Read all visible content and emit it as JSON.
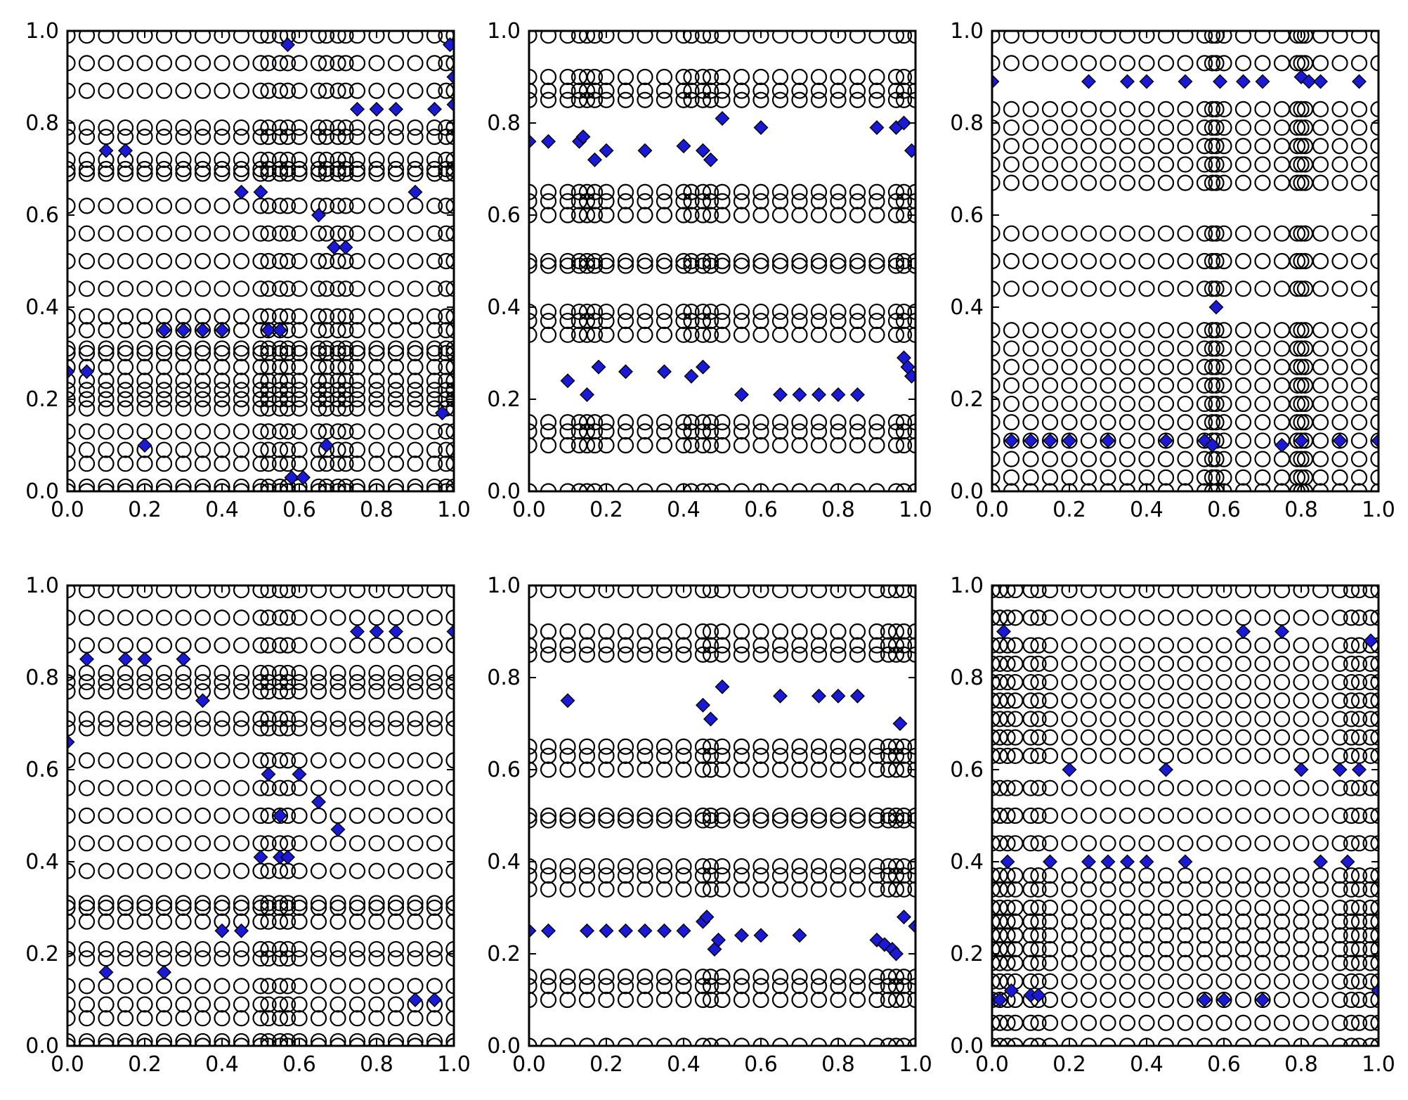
{
  "chart_data": [
    {
      "type": "scatter",
      "panel": "top-left",
      "xlim": [
        0,
        1
      ],
      "ylim": [
        0,
        1
      ],
      "x_ticks": [
        "0.0",
        "0.2",
        "0.4",
        "0.6",
        "0.8",
        "1.0"
      ],
      "y_ticks": [
        "0.0",
        "0.2",
        "0.4",
        "0.6",
        "0.8",
        "1.0"
      ],
      "circle_columns": [
        0,
        0.05,
        0.1,
        0.15,
        0.2,
        0.25,
        0.3,
        0.35,
        0.4,
        0.45,
        0.5,
        0.52,
        0.55,
        0.57,
        0.6,
        0.65,
        0.67,
        0.7,
        0.72,
        0.75,
        0.8,
        0.85,
        0.9,
        0.95,
        0.98,
        1.0
      ],
      "circle_rows": [
        0,
        0.01,
        0.06,
        0.09,
        0.13,
        0.18,
        0.2,
        0.22,
        0.24,
        0.27,
        0.3,
        0.31,
        0.35,
        0.38,
        0.44,
        0.5,
        0.56,
        0.62,
        0.69,
        0.7,
        0.72,
        0.77,
        0.79,
        0.87,
        0.93,
        0.99
      ],
      "series": [
        {
          "name": "circles",
          "marker": "o",
          "color": "none"
        },
        {
          "name": "diamonds",
          "marker": "D",
          "color": "#1a1ad6",
          "points": [
            [
              0.0,
              0.26
            ],
            [
              0.05,
              0.26
            ],
            [
              0.1,
              0.74
            ],
            [
              0.15,
              0.74
            ],
            [
              0.2,
              0.1
            ],
            [
              0.25,
              0.35
            ],
            [
              0.3,
              0.35
            ],
            [
              0.35,
              0.35
            ],
            [
              0.4,
              0.35
            ],
            [
              0.45,
              0.65
            ],
            [
              0.5,
              0.65
            ],
            [
              0.52,
              0.35
            ],
            [
              0.55,
              0.35
            ],
            [
              0.57,
              0.97
            ],
            [
              0.58,
              0.03
            ],
            [
              0.61,
              0.03
            ],
            [
              0.65,
              0.6
            ],
            [
              0.67,
              0.1
            ],
            [
              0.69,
              0.53
            ],
            [
              0.72,
              0.53
            ],
            [
              0.75,
              0.83
            ],
            [
              0.8,
              0.83
            ],
            [
              0.85,
              0.83
            ],
            [
              0.9,
              0.65
            ],
            [
              0.95,
              0.83
            ],
            [
              0.97,
              0.17
            ],
            [
              0.99,
              0.97
            ],
            [
              1.0,
              0.9
            ],
            [
              1.0,
              0.84
            ]
          ]
        }
      ]
    },
    {
      "type": "scatter",
      "panel": "top-middle",
      "xlim": [
        0,
        1
      ],
      "ylim": [
        0,
        1
      ],
      "x_ticks": [
        "0.0",
        "0.2",
        "0.4",
        "0.6",
        "0.8",
        "1.0"
      ],
      "y_ticks": [
        "0.0",
        "0.2",
        "0.4",
        "0.6",
        "0.8",
        "1.0"
      ],
      "circle_columns": [
        0,
        0.05,
        0.1,
        0.13,
        0.15,
        0.17,
        0.2,
        0.25,
        0.3,
        0.35,
        0.4,
        0.42,
        0.45,
        0.47,
        0.5,
        0.55,
        0.6,
        0.65,
        0.7,
        0.75,
        0.8,
        0.85,
        0.9,
        0.95,
        0.97,
        1.0
      ],
      "circle_rows": [
        0,
        0.1,
        0.13,
        0.15,
        0.34,
        0.37,
        0.39,
        0.49,
        0.5,
        0.6,
        0.63,
        0.65,
        0.85,
        0.87,
        0.9,
        0.99
      ],
      "series": [
        {
          "name": "circles",
          "marker": "o",
          "color": "none"
        },
        {
          "name": "diamonds",
          "marker": "D",
          "color": "#1a1ad6",
          "points": [
            [
              0.0,
              0.76
            ],
            [
              0.05,
              0.76
            ],
            [
              0.1,
              0.24
            ],
            [
              0.13,
              0.76
            ],
            [
              0.14,
              0.77
            ],
            [
              0.15,
              0.21
            ],
            [
              0.17,
              0.72
            ],
            [
              0.18,
              0.27
            ],
            [
              0.2,
              0.74
            ],
            [
              0.25,
              0.26
            ],
            [
              0.3,
              0.74
            ],
            [
              0.35,
              0.26
            ],
            [
              0.4,
              0.75
            ],
            [
              0.42,
              0.25
            ],
            [
              0.45,
              0.74
            ],
            [
              0.45,
              0.27
            ],
            [
              0.47,
              0.72
            ],
            [
              0.5,
              0.81
            ],
            [
              0.55,
              0.21
            ],
            [
              0.6,
              0.79
            ],
            [
              0.65,
              0.21
            ],
            [
              0.7,
              0.21
            ],
            [
              0.75,
              0.21
            ],
            [
              0.8,
              0.21
            ],
            [
              0.85,
              0.21
            ],
            [
              0.9,
              0.79
            ],
            [
              0.95,
              0.79
            ],
            [
              0.97,
              0.8
            ],
            [
              0.97,
              0.29
            ],
            [
              0.99,
              0.74
            ],
            [
              0.99,
              0.25
            ],
            [
              0.98,
              0.27
            ]
          ]
        }
      ]
    },
    {
      "type": "scatter",
      "panel": "top-right",
      "xlim": [
        0,
        1
      ],
      "ylim": [
        0,
        1
      ],
      "x_ticks": [
        "0.0",
        "0.2",
        "0.4",
        "0.6",
        "0.8",
        "1.0"
      ],
      "y_ticks": [
        "0.0",
        "0.2",
        "0.4",
        "0.6",
        "0.8",
        "1.0"
      ],
      "circle_columns": [
        0,
        0.05,
        0.1,
        0.15,
        0.2,
        0.25,
        0.3,
        0.35,
        0.4,
        0.45,
        0.5,
        0.55,
        0.57,
        0.58,
        0.6,
        0.65,
        0.7,
        0.75,
        0.79,
        0.8,
        0.81,
        0.85,
        0.9,
        0.95,
        1.0
      ],
      "circle_rows": [
        0,
        0.03,
        0.07,
        0.11,
        0.15,
        0.19,
        0.23,
        0.27,
        0.31,
        0.35,
        0.44,
        0.5,
        0.56,
        0.67,
        0.71,
        0.75,
        0.79,
        0.83,
        0.93,
        0.99
      ],
      "series": [
        {
          "name": "circles",
          "marker": "o",
          "color": "none"
        },
        {
          "name": "diamonds",
          "marker": "D",
          "color": "#1a1ad6",
          "points": [
            [
              0.0,
              0.89
            ],
            [
              0.05,
              0.11
            ],
            [
              0.1,
              0.11
            ],
            [
              0.15,
              0.11
            ],
            [
              0.2,
              0.11
            ],
            [
              0.25,
              0.89
            ],
            [
              0.3,
              0.11
            ],
            [
              0.35,
              0.89
            ],
            [
              0.4,
              0.89
            ],
            [
              0.45,
              0.11
            ],
            [
              0.5,
              0.89
            ],
            [
              0.55,
              0.11
            ],
            [
              0.57,
              0.1
            ],
            [
              0.58,
              0.4
            ],
            [
              0.59,
              0.89
            ],
            [
              0.65,
              0.89
            ],
            [
              0.7,
              0.89
            ],
            [
              0.75,
              0.1
            ],
            [
              0.8,
              0.11
            ],
            [
              0.8,
              0.9
            ],
            [
              0.82,
              0.89
            ],
            [
              0.85,
              0.89
            ],
            [
              0.9,
              0.11
            ],
            [
              0.95,
              0.89
            ],
            [
              1.0,
              0.11
            ]
          ]
        }
      ]
    },
    {
      "type": "scatter",
      "panel": "bottom-left",
      "xlim": [
        0,
        1
      ],
      "ylim": [
        0,
        1
      ],
      "x_ticks": [
        "0.0",
        "0.2",
        "0.4",
        "0.6",
        "0.8",
        "1.0"
      ],
      "y_ticks": [
        "0.0",
        "0.2",
        "0.4",
        "0.6",
        "0.8",
        "1.0"
      ],
      "circle_columns": [
        0,
        0.05,
        0.1,
        0.15,
        0.2,
        0.25,
        0.3,
        0.35,
        0.4,
        0.45,
        0.5,
        0.52,
        0.55,
        0.57,
        0.6,
        0.65,
        0.7,
        0.75,
        0.8,
        0.85,
        0.9,
        0.95,
        1.0
      ],
      "circle_rows": [
        0,
        0.01,
        0.06,
        0.09,
        0.13,
        0.19,
        0.21,
        0.27,
        0.3,
        0.31,
        0.38,
        0.44,
        0.5,
        0.56,
        0.62,
        0.69,
        0.71,
        0.77,
        0.79,
        0.81,
        0.87,
        0.93,
        0.99
      ],
      "series": [
        {
          "name": "circles",
          "marker": "o",
          "color": "none"
        },
        {
          "name": "diamonds",
          "marker": "D",
          "color": "#1a1ad6",
          "points": [
            [
              0.0,
              0.66
            ],
            [
              0.05,
              0.84
            ],
            [
              0.1,
              0.16
            ],
            [
              0.15,
              0.84
            ],
            [
              0.2,
              0.84
            ],
            [
              0.25,
              0.16
            ],
            [
              0.3,
              0.84
            ],
            [
              0.35,
              0.75
            ],
            [
              0.4,
              0.25
            ],
            [
              0.45,
              0.25
            ],
            [
              0.5,
              0.41
            ],
            [
              0.52,
              0.59
            ],
            [
              0.55,
              0.5
            ],
            [
              0.55,
              0.41
            ],
            [
              0.57,
              0.41
            ],
            [
              0.6,
              0.59
            ],
            [
              0.65,
              0.53
            ],
            [
              0.7,
              0.47
            ],
            [
              0.75,
              0.9
            ],
            [
              0.8,
              0.9
            ],
            [
              0.85,
              0.9
            ],
            [
              0.9,
              0.1
            ],
            [
              0.95,
              0.1
            ],
            [
              1.0,
              0.9
            ]
          ]
        }
      ]
    },
    {
      "type": "scatter",
      "panel": "bottom-middle",
      "xlim": [
        0,
        1
      ],
      "ylim": [
        0,
        1
      ],
      "x_ticks": [
        "0.0",
        "0.2",
        "0.4",
        "0.6",
        "0.8",
        "1.0"
      ],
      "y_ticks": [
        "0.0",
        "0.2",
        "0.4",
        "0.6",
        "0.8",
        "1.0"
      ],
      "circle_columns": [
        0,
        0.05,
        0.1,
        0.15,
        0.2,
        0.25,
        0.3,
        0.35,
        0.4,
        0.45,
        0.47,
        0.5,
        0.55,
        0.6,
        0.65,
        0.7,
        0.75,
        0.8,
        0.85,
        0.9,
        0.93,
        0.95,
        0.97,
        1.0
      ],
      "circle_rows": [
        0,
        0.1,
        0.13,
        0.15,
        0.34,
        0.37,
        0.39,
        0.49,
        0.5,
        0.6,
        0.63,
        0.65,
        0.85,
        0.87,
        0.9,
        0.99
      ],
      "series": [
        {
          "name": "circles",
          "marker": "o",
          "color": "none"
        },
        {
          "name": "diamonds",
          "marker": "D",
          "color": "#1a1ad6",
          "points": [
            [
              0.0,
              0.25
            ],
            [
              0.05,
              0.25
            ],
            [
              0.1,
              0.75
            ],
            [
              0.15,
              0.25
            ],
            [
              0.2,
              0.25
            ],
            [
              0.25,
              0.25
            ],
            [
              0.3,
              0.25
            ],
            [
              0.35,
              0.25
            ],
            [
              0.4,
              0.25
            ],
            [
              0.45,
              0.74
            ],
            [
              0.45,
              0.27
            ],
            [
              0.46,
              0.28
            ],
            [
              0.47,
              0.71
            ],
            [
              0.48,
              0.21
            ],
            [
              0.49,
              0.23
            ],
            [
              0.5,
              0.78
            ],
            [
              0.55,
              0.24
            ],
            [
              0.6,
              0.24
            ],
            [
              0.65,
              0.76
            ],
            [
              0.7,
              0.24
            ],
            [
              0.75,
              0.76
            ],
            [
              0.8,
              0.76
            ],
            [
              0.85,
              0.76
            ],
            [
              0.9,
              0.23
            ],
            [
              0.92,
              0.22
            ],
            [
              0.94,
              0.21
            ],
            [
              0.95,
              0.2
            ],
            [
              0.96,
              0.7
            ],
            [
              0.97,
              0.28
            ],
            [
              1.0,
              0.26
            ]
          ]
        }
      ]
    },
    {
      "type": "scatter",
      "panel": "bottom-right",
      "xlim": [
        0,
        1
      ],
      "ylim": [
        0,
        1
      ],
      "x_ticks": [
        "0.0",
        "0.2",
        "0.4",
        "0.6",
        "0.8",
        "1.0"
      ],
      "y_ticks": [
        "0.0",
        "0.2",
        "0.4",
        "0.6",
        "0.8",
        "1.0"
      ],
      "circle_columns": [
        0,
        0.02,
        0.04,
        0.06,
        0.1,
        0.12,
        0.15,
        0.2,
        0.25,
        0.3,
        0.35,
        0.4,
        0.45,
        0.5,
        0.55,
        0.6,
        0.65,
        0.7,
        0.75,
        0.8,
        0.85,
        0.9,
        0.93,
        0.95,
        0.98,
        1.0
      ],
      "circle_rows": [
        0,
        0.05,
        0.1,
        0.14,
        0.18,
        0.21,
        0.24,
        0.27,
        0.3,
        0.34,
        0.37,
        0.44,
        0.5,
        0.56,
        0.63,
        0.67,
        0.71,
        0.75,
        0.79,
        0.83,
        0.87,
        0.93,
        0.99
      ],
      "series": [
        {
          "name": "circles",
          "marker": "o",
          "color": "none"
        },
        {
          "name": "diamonds",
          "marker": "D",
          "color": "#1a1ad6",
          "points": [
            [
              0.0,
              0.1
            ],
            [
              0.02,
              0.1
            ],
            [
              0.03,
              0.9
            ],
            [
              0.04,
              0.4
            ],
            [
              0.05,
              0.12
            ],
            [
              0.1,
              0.11
            ],
            [
              0.12,
              0.11
            ],
            [
              0.15,
              0.4
            ],
            [
              0.2,
              0.6
            ],
            [
              0.25,
              0.4
            ],
            [
              0.3,
              0.4
            ],
            [
              0.35,
              0.4
            ],
            [
              0.4,
              0.4
            ],
            [
              0.45,
              0.6
            ],
            [
              0.5,
              0.4
            ],
            [
              0.55,
              0.1
            ],
            [
              0.6,
              0.1
            ],
            [
              0.65,
              0.9
            ],
            [
              0.7,
              0.1
            ],
            [
              0.75,
              0.9
            ],
            [
              0.8,
              0.6
            ],
            [
              0.85,
              0.4
            ],
            [
              0.9,
              0.6
            ],
            [
              0.92,
              0.4
            ],
            [
              0.95,
              0.6
            ],
            [
              0.98,
              0.88
            ],
            [
              1.0,
              0.12
            ]
          ]
        }
      ]
    }
  ]
}
